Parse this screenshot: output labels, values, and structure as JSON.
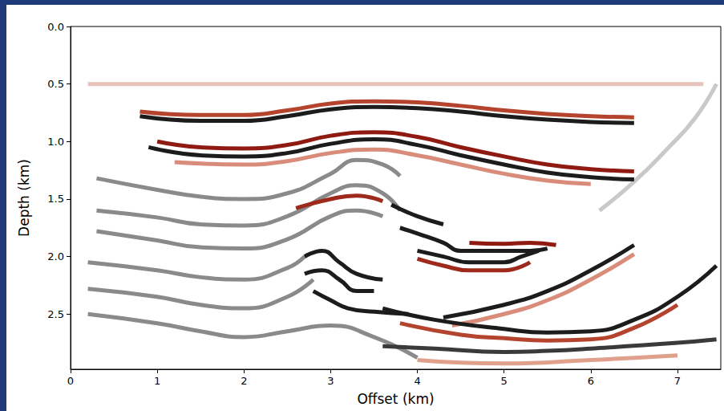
{
  "chart_data": {
    "type": "line",
    "xlabel": "Offset (km)",
    "ylabel": "Depth (km)",
    "xlim": [
      0,
      7.5
    ],
    "ylim": [
      0,
      2.98
    ],
    "xticks": [
      0,
      1,
      2,
      3,
      4,
      5,
      6,
      7
    ],
    "yticks": [
      {
        "value": 0,
        "label": "0.0"
      },
      0.5,
      {
        "value": 1,
        "label": "1.0"
      },
      1.5,
      {
        "value": 2,
        "label": "2.0"
      },
      2.5
    ],
    "grid": false,
    "series": [
      {
        "color": "#e6c4bb",
        "values": [
          [
            0.2,
            0.5
          ],
          [
            3,
            0.5
          ],
          [
            5,
            0.5
          ],
          [
            7.3,
            0.5
          ]
        ]
      },
      {
        "color": "#c9c9c9",
        "values": [
          [
            6.1,
            1.6
          ],
          [
            6.5,
            1.35
          ],
          [
            6.9,
            1.05
          ],
          [
            7.2,
            0.8
          ],
          [
            7.45,
            0.5
          ]
        ]
      },
      {
        "color": "#b4442e",
        "values": [
          [
            0.8,
            0.74
          ],
          [
            1.5,
            0.77
          ],
          [
            2,
            0.77
          ],
          [
            2.5,
            0.73
          ],
          [
            3,
            0.67
          ],
          [
            3.5,
            0.65
          ],
          [
            4,
            0.66
          ],
          [
            4.5,
            0.69
          ],
          [
            5,
            0.73
          ],
          [
            5.5,
            0.76
          ],
          [
            6,
            0.78
          ],
          [
            6.5,
            0.79
          ]
        ]
      },
      {
        "color": "#1c1c1c",
        "values": [
          [
            0.8,
            0.78
          ],
          [
            1.5,
            0.82
          ],
          [
            2,
            0.82
          ],
          [
            2.5,
            0.78
          ],
          [
            3,
            0.72
          ],
          [
            3.5,
            0.7
          ],
          [
            4,
            0.71
          ],
          [
            4.5,
            0.74
          ],
          [
            5,
            0.78
          ],
          [
            5.5,
            0.81
          ],
          [
            6,
            0.83
          ],
          [
            6.5,
            0.84
          ]
        ]
      },
      {
        "color": "#8e1a12",
        "values": [
          [
            1,
            1.0
          ],
          [
            1.5,
            1.05
          ],
          [
            2,
            1.06
          ],
          [
            2.5,
            1.03
          ],
          [
            3,
            0.95
          ],
          [
            3.5,
            0.92
          ],
          [
            4,
            0.96
          ],
          [
            4.5,
            1.05
          ],
          [
            5,
            1.13
          ],
          [
            5.5,
            1.2
          ],
          [
            6,
            1.24
          ],
          [
            6.5,
            1.26
          ]
        ]
      },
      {
        "color": "#1c1c1c",
        "values": [
          [
            0.9,
            1.05
          ],
          [
            1.5,
            1.12
          ],
          [
            2,
            1.13
          ],
          [
            2.5,
            1.1
          ],
          [
            3,
            1.02
          ],
          [
            3.5,
            0.98
          ],
          [
            4,
            1.03
          ],
          [
            4.5,
            1.12
          ],
          [
            5,
            1.2
          ],
          [
            5.5,
            1.27
          ],
          [
            6,
            1.31
          ],
          [
            6.5,
            1.33
          ]
        ]
      },
      {
        "color": "#d98c7a",
        "values": [
          [
            1.2,
            1.18
          ],
          [
            2,
            1.2
          ],
          [
            2.5,
            1.17
          ],
          [
            3,
            1.1
          ],
          [
            3.5,
            1.07
          ],
          [
            4,
            1.12
          ],
          [
            4.5,
            1.2
          ],
          [
            5,
            1.28
          ],
          [
            5.5,
            1.34
          ],
          [
            6,
            1.37
          ]
        ]
      },
      {
        "color": "#8a8a8a",
        "values": [
          [
            0.3,
            1.32
          ],
          [
            1,
            1.42
          ],
          [
            1.5,
            1.48
          ],
          [
            2,
            1.5
          ],
          [
            2.5,
            1.45
          ],
          [
            3,
            1.28
          ],
          [
            3.3,
            1.16
          ],
          [
            3.6,
            1.2
          ],
          [
            3.8,
            1.3
          ]
        ]
      },
      {
        "color": "#8a8a8a",
        "values": [
          [
            0.3,
            1.6
          ],
          [
            1,
            1.66
          ],
          [
            1.5,
            1.72
          ],
          [
            2,
            1.73
          ],
          [
            2.5,
            1.65
          ],
          [
            3,
            1.45
          ],
          [
            3.3,
            1.38
          ],
          [
            3.6,
            1.45
          ],
          [
            3.8,
            1.6
          ]
        ]
      },
      {
        "color": "#9e2a1c",
        "values": [
          [
            2.6,
            1.58
          ],
          [
            3,
            1.5
          ],
          [
            3.3,
            1.47
          ],
          [
            3.6,
            1.52
          ]
        ]
      },
      {
        "color": "#8a8a8a",
        "values": [
          [
            0.3,
            1.78
          ],
          [
            1,
            1.86
          ],
          [
            1.5,
            1.92
          ],
          [
            2,
            1.93
          ],
          [
            2.5,
            1.85
          ],
          [
            3,
            1.65
          ],
          [
            3.3,
            1.6
          ],
          [
            3.6,
            1.65
          ]
        ]
      },
      {
        "color": "#1c1c1c",
        "values": [
          [
            3.7,
            1.55
          ],
          [
            4,
            1.65
          ],
          [
            4.3,
            1.72
          ]
        ]
      },
      {
        "color": "#1c1c1c",
        "values": [
          [
            3.8,
            1.75
          ],
          [
            4,
            1.8
          ],
          [
            4.3,
            1.88
          ],
          [
            4.5,
            1.95
          ],
          [
            5,
            1.95
          ],
          [
            5.3,
            1.95
          ],
          [
            5.5,
            1.93
          ]
        ]
      },
      {
        "color": "#8e1a12",
        "values": [
          [
            4.6,
            1.88
          ],
          [
            5,
            1.89
          ],
          [
            5.3,
            1.88
          ],
          [
            5.6,
            1.9
          ]
        ]
      },
      {
        "color": "#1c1c1c",
        "values": [
          [
            4,
            1.95
          ],
          [
            4.3,
            2.0
          ],
          [
            4.6,
            2.05
          ],
          [
            5,
            2.05
          ],
          [
            5.2,
            2.0
          ],
          [
            5.4,
            1.95
          ]
        ]
      },
      {
        "color": "#9e2a1c",
        "values": [
          [
            4,
            2.02
          ],
          [
            4.3,
            2.08
          ],
          [
            4.6,
            2.12
          ],
          [
            5,
            2.12
          ],
          [
            5.3,
            2.05
          ]
        ]
      },
      {
        "color": "#8a8a8a",
        "values": [
          [
            0.2,
            2.05
          ],
          [
            1,
            2.12
          ],
          [
            1.5,
            2.18
          ],
          [
            2,
            2.2
          ],
          [
            2.5,
            2.1
          ],
          [
            2.7,
            2.0
          ]
        ]
      },
      {
        "color": "#8a8a8a",
        "values": [
          [
            0.2,
            2.28
          ],
          [
            1,
            2.35
          ],
          [
            1.5,
            2.42
          ],
          [
            2,
            2.45
          ],
          [
            2.5,
            2.35
          ],
          [
            2.8,
            2.2
          ]
        ]
      },
      {
        "color": "#8a8a8a",
        "values": [
          [
            0.2,
            2.5
          ],
          [
            1,
            2.58
          ],
          [
            1.5,
            2.65
          ],
          [
            2,
            2.7
          ],
          [
            2.5,
            2.65
          ],
          [
            3,
            2.6
          ],
          [
            3.5,
            2.7
          ],
          [
            4,
            2.88
          ]
        ]
      },
      {
        "color": "#1c1c1c",
        "values": [
          [
            2.7,
            2.0
          ],
          [
            2.9,
            1.95
          ],
          [
            3.1,
            2.05
          ],
          [
            3.3,
            2.15
          ],
          [
            3.6,
            2.2
          ]
        ]
      },
      {
        "color": "#1c1c1c",
        "values": [
          [
            2.7,
            2.15
          ],
          [
            2.9,
            2.12
          ],
          [
            3.1,
            2.2
          ],
          [
            3.3,
            2.3
          ],
          [
            3.5,
            2.3
          ]
        ]
      },
      {
        "color": "#1c1c1c",
        "values": [
          [
            2.8,
            2.3
          ],
          [
            3.0,
            2.38
          ],
          [
            3.2,
            2.45
          ],
          [
            3.5,
            2.48
          ],
          [
            3.9,
            2.5
          ]
        ]
      },
      {
        "color": "#1c1c1c",
        "values": [
          [
            4.3,
            2.53
          ],
          [
            5,
            2.42
          ],
          [
            5.5,
            2.3
          ],
          [
            6,
            2.12
          ],
          [
            6.5,
            1.9
          ]
        ]
      },
      {
        "color": "#d98c7a",
        "values": [
          [
            4.4,
            2.6
          ],
          [
            5,
            2.5
          ],
          [
            5.5,
            2.38
          ],
          [
            6,
            2.2
          ],
          [
            6.5,
            1.98
          ]
        ]
      },
      {
        "color": "#1c1c1c",
        "values": [
          [
            3.6,
            2.45
          ],
          [
            4.2,
            2.55
          ],
          [
            5,
            2.63
          ],
          [
            5.5,
            2.66
          ],
          [
            6,
            2.65
          ],
          [
            6.5,
            2.55
          ],
          [
            7,
            2.35
          ],
          [
            7.45,
            2.08
          ]
        ]
      },
      {
        "color": "#b4442e",
        "values": [
          [
            3.8,
            2.58
          ],
          [
            4.5,
            2.68
          ],
          [
            5,
            2.71
          ],
          [
            5.5,
            2.73
          ],
          [
            6,
            2.72
          ],
          [
            6.5,
            2.62
          ],
          [
            7,
            2.42
          ]
        ]
      },
      {
        "color": "#3a3a3a",
        "values": [
          [
            3.6,
            2.78
          ],
          [
            4.2,
            2.8
          ],
          [
            5,
            2.83
          ],
          [
            5.5,
            2.82
          ],
          [
            6,
            2.8
          ],
          [
            7,
            2.75
          ],
          [
            7.45,
            2.72
          ]
        ]
      },
      {
        "color": "#e0a08c",
        "values": [
          [
            4,
            2.9
          ],
          [
            5,
            2.93
          ],
          [
            6,
            2.9
          ],
          [
            7,
            2.86
          ]
        ]
      }
    ]
  }
}
